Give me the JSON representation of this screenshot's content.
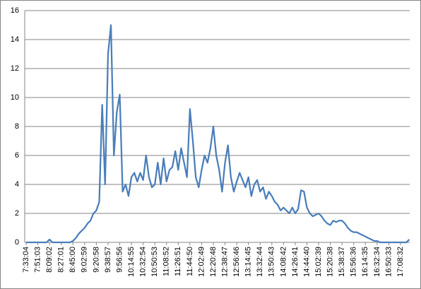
{
  "chart_data": {
    "type": "line",
    "categories": [
      "7:33:04",
      null,
      null,
      null,
      "7:51:03",
      null,
      null,
      null,
      "8:09:02",
      null,
      null,
      null,
      "8:27:01",
      null,
      null,
      null,
      "8:45:00",
      null,
      null,
      null,
      "9:02:59",
      null,
      null,
      null,
      "9:20:58",
      null,
      null,
      null,
      "9:38:57",
      null,
      null,
      null,
      "9:56:56",
      null,
      null,
      null,
      "10:14:55",
      null,
      null,
      null,
      "10:32:54",
      null,
      null,
      null,
      "10:50:53",
      null,
      null,
      null,
      "11:08:52",
      null,
      null,
      null,
      "11:26:51",
      null,
      null,
      null,
      "11:44:50",
      null,
      null,
      null,
      "12:02:49",
      null,
      null,
      null,
      "12:20:48",
      null,
      null,
      null,
      "12:38:47",
      null,
      null,
      null,
      "12:56:46",
      null,
      null,
      null,
      "13:14:45",
      null,
      null,
      null,
      "13:32:44",
      null,
      null,
      null,
      "13:50:43",
      null,
      null,
      null,
      "14:08:42",
      null,
      null,
      null,
      "14:26:41",
      null,
      null,
      null,
      "14:44:40",
      null,
      null,
      null,
      "15:02:39",
      null,
      null,
      null,
      "15:20:38",
      null,
      null,
      null,
      "15:38:37",
      null,
      null,
      null,
      "15:56:36",
      null,
      null,
      null,
      "16:14:35",
      null,
      null,
      null,
      "16:32:34",
      null,
      null,
      null,
      "16:50:33",
      null,
      null,
      null,
      "17:08:32",
      null,
      null,
      null
    ],
    "series": [
      {
        "color": "#4a7ebb",
        "values": [
          0,
          0,
          0,
          0,
          0,
          0,
          0,
          0,
          0.2,
          0,
          0,
          0,
          0,
          0,
          0,
          0,
          0.1,
          0.3,
          0.6,
          0.8,
          1.0,
          1.3,
          1.5,
          2.0,
          2.2,
          2.8,
          9.5,
          4.0,
          13,
          15,
          6,
          9,
          10.2,
          3.5,
          4.0,
          3.2,
          4.5,
          4.8,
          4.2,
          4.8,
          4.3,
          6.0,
          4.5,
          3.8,
          4.0,
          5.5,
          4.0,
          5.8,
          4.2,
          5.0,
          5.2,
          6.3,
          5.0,
          6.5,
          5.5,
          4.5,
          9.2,
          7.0,
          4.5,
          3.8,
          5.0,
          6.0,
          5.5,
          6.5,
          8.0,
          6.0,
          5.0,
          3.5,
          5.5,
          6.7,
          4.5,
          3.5,
          4.2,
          4.8,
          4.3,
          3.8,
          4.5,
          3.2,
          4.0,
          4.3,
          3.5,
          3.8,
          3.0,
          3.5,
          3.2,
          2.8,
          2.6,
          2.2,
          2.4,
          2.2,
          2.0,
          2.4,
          2.0,
          2.3,
          3.6,
          3.5,
          2.4,
          2.0,
          1.8,
          1.9,
          2.0,
          1.8,
          1.5,
          1.3,
          1.2,
          1.5,
          1.4,
          1.5,
          1.5,
          1.3,
          1.0,
          0.8,
          0.7,
          0.7,
          0.6,
          0.5,
          0.4,
          0.3,
          0.2,
          0.1,
          0.1,
          0,
          0,
          0,
          0,
          0,
          0,
          0,
          0,
          0,
          0,
          0.2
        ]
      }
    ],
    "ylim": [
      0,
      16
    ],
    "yticks": [
      0,
      2,
      4,
      6,
      8,
      10,
      12,
      14,
      16
    ],
    "grid": true
  }
}
